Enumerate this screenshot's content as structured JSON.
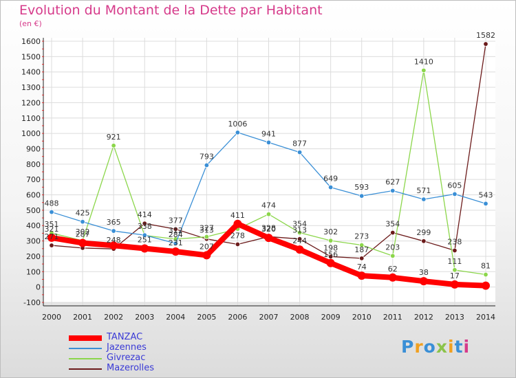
{
  "header": {
    "title": "Evolution du Montant de la Dette par Habitant",
    "subtitle": "(en €)"
  },
  "logo": {
    "text": "Proxiti",
    "colors": [
      "#3a8fd6",
      "#f0a020",
      "#3a8fd6",
      "#8bc34a",
      "#f0a020",
      "#3a8fd6",
      "#d63a8a"
    ]
  },
  "chart_data": {
    "type": "line",
    "title": "Evolution du Montant de la Dette par Habitant",
    "ylabel": "(en €)",
    "xlabel": "",
    "x": [
      "2000",
      "2001",
      "2002",
      "2003",
      "2004",
      "2005",
      "2006",
      "2007",
      "2008",
      "2009",
      "2010",
      "2011",
      "2012",
      "2013",
      "2014"
    ],
    "ylim": [
      -100,
      1600
    ],
    "yticks": [
      -100,
      0,
      100,
      200,
      300,
      400,
      500,
      600,
      700,
      800,
      900,
      1000,
      1100,
      1200,
      1300,
      1400,
      1500,
      1600
    ],
    "grid": true,
    "legend_position": "bottom-left",
    "series": [
      {
        "name": "TANZAC",
        "color": "#ff0000",
        "values": [
          321,
          287,
          270,
          251,
          231,
          207,
          411,
          320,
          244,
          156,
          74,
          62,
          38,
          17,
          9
        ],
        "labels": [
          "321",
          "287",
          "",
          "251",
          "231",
          "207",
          "411",
          "320",
          "244",
          "156",
          "74",
          "62",
          "38",
          "17",
          ""
        ]
      },
      {
        "name": "Jazennes",
        "color": "#3a8fd6",
        "values": [
          488,
          425,
          365,
          338,
          284,
          793,
          1006,
          941,
          877,
          649,
          593,
          627,
          571,
          605,
          543
        ],
        "labels": [
          "488",
          "425",
          "365",
          "338",
          "284",
          "793",
          "1006",
          "941",
          "877",
          "649",
          "593",
          "627",
          "571",
          "605",
          "543"
        ]
      },
      {
        "name": "Givrezac",
        "color": "#8bd64a",
        "values": [
          351,
          302,
          921,
          336,
          312,
          327,
          378,
          474,
          354,
          302,
          273,
          203,
          1410,
          111,
          81
        ],
        "labels": [
          "351",
          "302",
          "921",
          "",
          "312",
          "327",
          "",
          "474",
          "354",
          "302",
          "273",
          "203",
          "1410",
          "111",
          "81"
        ]
      },
      {
        "name": "Mazerolles",
        "color": "#6b1a1a",
        "values": [
          271,
          254,
          248,
          414,
          377,
          313,
          278,
          328,
          313,
          198,
          187,
          354,
          299,
          238,
          1582
        ],
        "labels": [
          "271",
          "",
          "248",
          "414",
          "377",
          "313",
          "278",
          "328",
          "313",
          "198",
          "187",
          "354",
          "299",
          "238",
          "1582"
        ]
      }
    ]
  }
}
